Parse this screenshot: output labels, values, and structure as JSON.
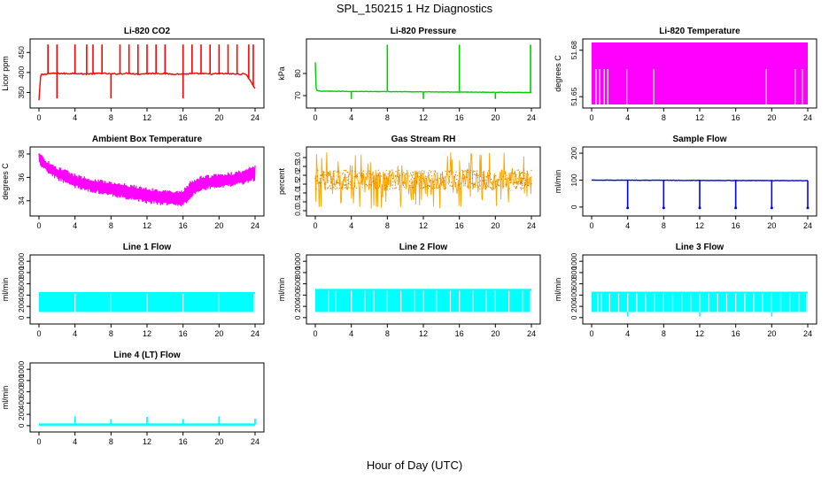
{
  "page": {
    "title": "SPL_150215  1 Hz Diagnostics",
    "x_caption": "Hour of Day (UTC)"
  },
  "colors": {
    "co2": "#ff0000",
    "pressure": "#00cc00",
    "temperature": "#ff00ff",
    "ambient": "#ff00ff",
    "rh": "#ffa500",
    "rh_points": "#cc7a00",
    "sample_flow": "#0000ff",
    "line_flow": "#00ffff",
    "axis": "#000000"
  },
  "chart_data": [
    {
      "id": "co2",
      "type": "line",
      "title": "Li-820 CO2",
      "ylabel": "Licor ppm",
      "color": "#ff0000",
      "xlim": [
        0,
        24
      ],
      "ylim": [
        320,
        475
      ],
      "xticks": [
        0,
        4,
        8,
        12,
        16,
        20,
        24
      ],
      "yticks": [
        350,
        400,
        450
      ],
      "x": [
        0,
        0.2,
        0.5,
        1,
        2,
        3,
        4,
        5,
        6,
        7,
        8,
        9,
        10,
        11,
        12,
        13,
        14,
        15,
        16,
        17,
        18,
        19,
        20,
        21,
        22,
        23,
        24
      ],
      "values": [
        330,
        395,
        395,
        397,
        398,
        397,
        398,
        396,
        397,
        398,
        396,
        397,
        398,
        396,
        397,
        398,
        397,
        396,
        396,
        397,
        397,
        396,
        397,
        397,
        396,
        396,
        360
      ],
      "spikes_up": [
        1.0,
        2.0,
        4.0,
        5.3,
        6.0,
        7.0,
        9.0,
        10.0,
        11.0,
        12.0,
        13.0,
        14.0,
        16.0,
        17.0,
        18.0,
        19.0,
        20.0,
        21.0,
        22.0,
        23.3,
        23.8
      ],
      "spike_peak": 470,
      "spikes_down": [
        2.0,
        8.0,
        16.0
      ],
      "dip_value": 335
    },
    {
      "id": "pressure",
      "type": "line",
      "title": "Li-820 Pressure",
      "ylabel": "kPa",
      "color": "#00cc00",
      "xlim": [
        0,
        24
      ],
      "ylim": [
        66,
        94
      ],
      "xticks": [
        0,
        4,
        8,
        12,
        16,
        20,
        24
      ],
      "yticks": [
        70,
        80
      ],
      "x": [
        0,
        0.1,
        0.5,
        4,
        8,
        12,
        16,
        20,
        24
      ],
      "values": [
        85,
        72.5,
        72.0,
        71.9,
        71.8,
        71.7,
        71.6,
        71.5,
        71.4
      ],
      "spikes_up": [
        8.0,
        16.0,
        23.9
      ],
      "spike_peak": 93,
      "spikes_down": [
        4.0,
        12.0,
        20.0
      ],
      "dip_value": 68.5
    },
    {
      "id": "licor_temp",
      "type": "area",
      "title": "Li-820 Temperature",
      "ylabel": "degrees C",
      "color": "#ff00ff",
      "xlim": [
        0,
        24
      ],
      "ylim": [
        51.645,
        51.685
      ],
      "xticks": [
        0,
        4,
        8,
        12,
        16,
        20,
        24
      ],
      "ytick_values": [
        51.65,
        51.68
      ],
      "yticks": [
        "51.65",
        "51.68"
      ],
      "band": [
        51.645,
        51.685
      ],
      "gaps": [
        0.5,
        0.9,
        1.4,
        1.8,
        3.9,
        6.9,
        19.4,
        22.6,
        23.4
      ]
    },
    {
      "id": "ambient",
      "type": "area",
      "title": "Ambient Box Temperature",
      "ylabel": "degrees C",
      "color": "#ff00ff",
      "xlim": [
        0,
        24
      ],
      "ylim": [
        33,
        38.3
      ],
      "xticks": [
        0,
        4,
        8,
        12,
        16,
        20,
        24
      ],
      "yticks": [
        34,
        36,
        38
      ],
      "x": [
        0,
        1,
        2,
        4,
        6,
        8,
        10,
        12,
        14,
        16,
        17,
        18,
        20,
        22,
        24
      ],
      "upper": [
        38.0,
        37.3,
        36.8,
        36.2,
        35.8,
        35.5,
        35.3,
        35.0,
        34.8,
        34.8,
        35.7,
        36.0,
        36.2,
        36.4,
        36.9
      ],
      "lower": [
        37.2,
        36.5,
        35.9,
        35.2,
        34.8,
        34.5,
        34.2,
        33.9,
        33.7,
        33.6,
        34.4,
        35.0,
        35.2,
        35.4,
        35.8
      ]
    },
    {
      "id": "rh",
      "type": "area",
      "title": "Gas Stream RH",
      "ylabel": "percent",
      "color": "#ffa500",
      "xlim": [
        0,
        24
      ],
      "ylim": [
        -0.1,
        3.4
      ],
      "xticks": [
        0,
        4,
        8,
        12,
        16,
        20,
        24
      ],
      "ytick_values": [
        0,
        0.5,
        1,
        1.5,
        2,
        2.5,
        3
      ],
      "yticks": [
        "0.0",
        "0.5",
        "1.0",
        "1.5",
        "2.0",
        "2.5",
        "3.0"
      ],
      "band": [
        1.2,
        2.3
      ],
      "spike_range": [
        0.1,
        3.3
      ]
    },
    {
      "id": "sample_flow",
      "type": "line",
      "title": "Sample Flow",
      "ylabel": "ml/min",
      "color": "#0000ff",
      "xlim": [
        0,
        24
      ],
      "ylim": [
        -20,
        210
      ],
      "xticks": [
        0,
        4,
        8,
        12,
        16,
        20,
        24
      ],
      "yticks": [
        0,
        100,
        200
      ],
      "x": [
        0,
        24
      ],
      "values": [
        100,
        98
      ],
      "spikes_down": [
        4.0,
        8.0,
        12.0,
        16.0,
        20.0,
        24.0
      ],
      "dip_value": -3
    },
    {
      "id": "line1",
      "type": "area",
      "title": "Line 1 Flow",
      "ylabel": "ml/min",
      "color": "#00ffff",
      "xlim": [
        0,
        24
      ],
      "ylim": [
        -50,
        1050
      ],
      "xticks": [
        0,
        4,
        8,
        12,
        16,
        20,
        24
      ],
      "yticks": [
        0,
        200,
        400,
        600,
        800,
        1000
      ],
      "band": [
        100,
        455
      ],
      "gaps": [
        4.0,
        8.0,
        12.0,
        16.0,
        20.0,
        23.9
      ]
    },
    {
      "id": "line2",
      "type": "area",
      "title": "Line 2 Flow",
      "ylabel": "ml/min",
      "color": "#00ffff",
      "xlim": [
        0,
        24
      ],
      "ylim": [
        -50,
        1050
      ],
      "xticks": [
        0,
        4,
        8,
        12,
        16,
        20,
        24
      ],
      "yticks": [
        0,
        200,
        400,
        600,
        800,
        1000
      ],
      "band": [
        100,
        510
      ],
      "gaps": [
        1.5,
        2.3,
        4.0,
        5.5,
        6.5,
        8.0,
        9.5,
        11.0,
        12.0,
        13.5,
        15.0,
        16.0,
        17.5,
        19.0,
        20.0,
        21.5,
        23.0,
        23.9
      ]
    },
    {
      "id": "line3",
      "type": "area",
      "title": "Line 3 Flow",
      "ylabel": "ml/min",
      "color": "#00ffff",
      "xlim": [
        0,
        24
      ],
      "ylim": [
        -50,
        1050
      ],
      "xticks": [
        0,
        4,
        8,
        12,
        16,
        20,
        24
      ],
      "yticks": [
        0,
        200,
        400,
        600,
        800,
        1000
      ],
      "band": [
        100,
        460
      ],
      "gaps": [
        0.7,
        1.1,
        2.0,
        3.0,
        4.0,
        5.0,
        6.0,
        7.0,
        8.0,
        9.0,
        10.0,
        11.0,
        12.0,
        13.0,
        14.0,
        15.0,
        16.0,
        17.0,
        18.0,
        19.0,
        20.0,
        21.0,
        22.0,
        23.0,
        23.9
      ]
    },
    {
      "id": "line4",
      "type": "line",
      "title": "Line 4 (LT) Flow",
      "ylabel": "ml/min",
      "color": "#00ffff",
      "xlim": [
        0,
        24
      ],
      "ylim": [
        -50,
        1050
      ],
      "xticks": [
        0,
        4,
        8,
        12,
        16,
        20,
        24
      ],
      "yticks": [
        0,
        200,
        400,
        600,
        800,
        1000
      ],
      "x": [
        0,
        24
      ],
      "values": [
        18,
        18
      ],
      "spikes_up": [
        4.0,
        8.0,
        12.0,
        16.0,
        20.0,
        24.0
      ],
      "spike_peaks": [
        165,
        115,
        155,
        120,
        165,
        125
      ]
    }
  ]
}
